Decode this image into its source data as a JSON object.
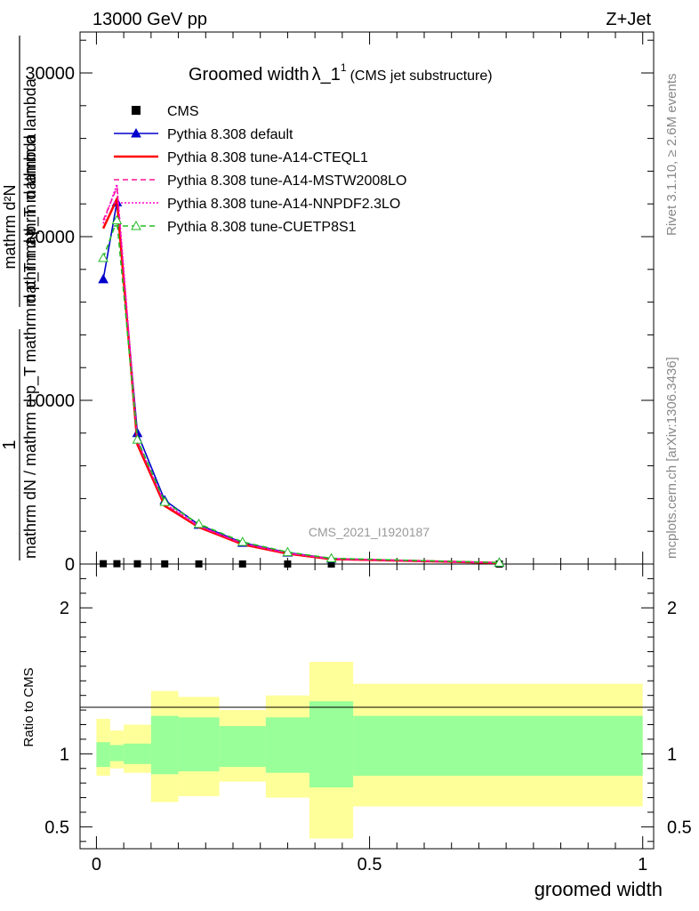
{
  "header": {
    "energy": "13000 GeV pp",
    "process": "Z+Jet",
    "plot_title": "Groomed width",
    "plot_title_symbol": "λ_1",
    "plot_title_sup": "1",
    "plot_subtitle": "(CMS jet substructure)",
    "analysis_id": "CMS_2021_I1920187"
  },
  "side": {
    "rivet": "Rivet 3.1.10, ≥ 2.6M events",
    "mcplots": "mcplots.cern.ch [arXiv:1306.3436]"
  },
  "ylabel": {
    "num_a": "1",
    "num_b": "mathrm d²N",
    "den_a": "mathrm dN / mathrm d p_T mathrm d p_T mathrm d lambda",
    "den_b": "mathrm d p_T mathrm d lambda"
  },
  "ratio_ylabel": "Ratio to CMS",
  "xlabel": "groomed width",
  "chart_data": [
    {
      "type": "line",
      "panel": "main",
      "xlim": [
        -0.03,
        1.02
      ],
      "ylim": [
        0,
        32500
      ],
      "x_ticks": [
        0,
        0.5,
        1
      ],
      "x_tick_labels": [
        "0",
        "0.5",
        "1"
      ],
      "y_ticks": [
        0,
        10000,
        20000,
        30000
      ],
      "y_tick_labels": [
        "0",
        "10000",
        "20000",
        "30000"
      ],
      "legend_position": "top-left",
      "x": [
        0.0125,
        0.0375,
        0.075,
        0.125,
        0.1875,
        0.2675,
        0.35,
        0.43,
        0.7375
      ],
      "series": [
        {
          "name": "CMS",
          "style": "marker",
          "color": "#000000",
          "values": [
            20,
            20,
            15,
            10,
            8,
            5,
            3,
            2,
            1
          ]
        },
        {
          "name": "Pythia 8.308 default",
          "style": "solid-tri",
          "color": "#0000cc",
          "values": [
            17400,
            22100,
            8000,
            3900,
            2400,
            1300,
            700,
            330,
            80
          ]
        },
        {
          "name": "Pythia 8.308 tune-A14-CTEQL1",
          "style": "solid",
          "color": "#ff0000",
          "values": [
            20500,
            22300,
            7300,
            3550,
            2250,
            1200,
            630,
            300,
            70
          ]
        },
        {
          "name": "Pythia 8.308 tune-A14-MSTW2008LO",
          "style": "dashed",
          "color": "#ff1493",
          "values": [
            21000,
            23000,
            7500,
            3650,
            2300,
            1250,
            660,
            310,
            72
          ]
        },
        {
          "name": "Pythia 8.308 tune-A14-NNPDF2.3LO",
          "style": "dotted",
          "color": "#ff00cc",
          "values": [
            20800,
            23200,
            7550,
            3700,
            2330,
            1260,
            670,
            320,
            74
          ]
        },
        {
          "name": "Pythia 8.308 tune-CUETP8S1",
          "style": "dashed-tri",
          "color": "#22bb22",
          "values": [
            18700,
            21000,
            7600,
            3800,
            2450,
            1350,
            730,
            350,
            85
          ]
        }
      ]
    },
    {
      "type": "area",
      "panel": "ratio",
      "xlim": [
        -0.03,
        1.02
      ],
      "ylim": [
        0.35,
        2.3
      ],
      "y_ticks": [
        0.5,
        1,
        2
      ],
      "y_tick_labels": [
        "0.5",
        "1",
        "2"
      ],
      "bin_edges": [
        0,
        0.025,
        0.05,
        0.1,
        0.15,
        0.225,
        0.31,
        0.39,
        0.47,
        1.0
      ],
      "total_band": {
        "name": "total",
        "color": "#ffff99",
        "lo": [
          0.85,
          0.9,
          0.87,
          0.67,
          0.71,
          0.81,
          0.7,
          0.42,
          0.64
        ],
        "hi": [
          1.24,
          1.16,
          1.2,
          1.43,
          1.39,
          1.3,
          1.4,
          1.63,
          1.48
        ]
      },
      "stat_band": {
        "name": "stat",
        "color": "#99ff99",
        "lo": [
          0.91,
          0.95,
          0.93,
          0.86,
          0.88,
          0.91,
          0.87,
          0.77,
          0.85
        ],
        "hi": [
          1.08,
          1.06,
          1.07,
          1.26,
          1.25,
          1.19,
          1.25,
          1.36,
          1.26
        ]
      }
    }
  ]
}
